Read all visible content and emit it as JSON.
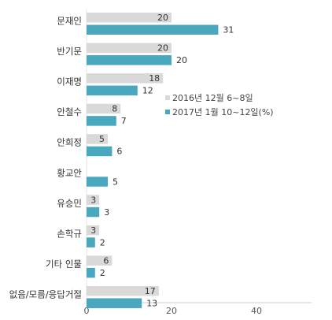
{
  "chart_data": {
    "type": "bar",
    "orientation": "horizontal",
    "categories": [
      "문재인",
      "반기문",
      "이재명",
      "안철수",
      "안희정",
      "황교안",
      "유승민",
      "손학규",
      "기타 인물",
      "없음/모름/응답거절"
    ],
    "series": [
      {
        "name": "2016년 12월 6~8일",
        "values": [
          20,
          20,
          18,
          8,
          5,
          null,
          3,
          3,
          6,
          17
        ],
        "color": "#d9d9d9"
      },
      {
        "name": "2017년 1월 10~12일(%)",
        "values": [
          31,
          20,
          12,
          7,
          6,
          5,
          3,
          2,
          2,
          13
        ],
        "color": "#4aa8be"
      }
    ],
    "xlim": [
      0,
      40
    ],
    "xticks": [
      0,
      20,
      40
    ],
    "grid": false,
    "legend_position": "right-middle",
    "title": "",
    "xlabel": "",
    "ylabel": ""
  }
}
